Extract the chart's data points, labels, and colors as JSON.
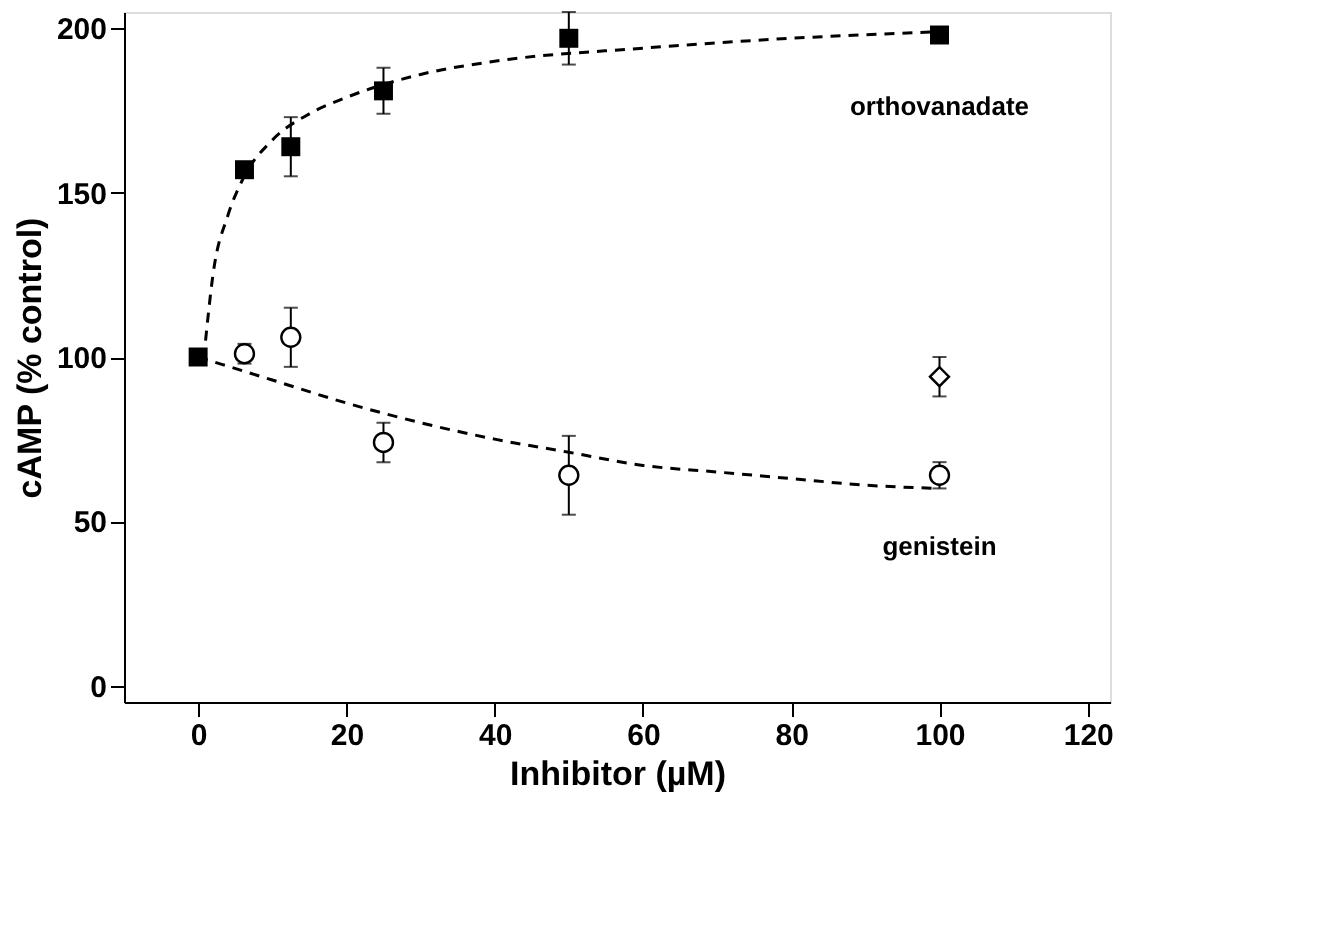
{
  "chart_data": {
    "type": "scatter",
    "xlabel": "Inhibitor  (µM)",
    "ylabel": "cAMP  (% control)",
    "xlim": [
      -10,
      123
    ],
    "ylim": [
      -5,
      205
    ],
    "xticks": [
      0,
      20,
      40,
      60,
      80,
      100,
      120
    ],
    "yticks": [
      0,
      50,
      100,
      150,
      200
    ],
    "grid": false,
    "series": [
      {
        "name": "orthovanadate",
        "color": "#000000",
        "marker": "square",
        "x": [
          0,
          6.25,
          12.5,
          25,
          50,
          100
        ],
        "values": [
          100,
          157,
          164,
          181,
          197,
          198
        ],
        "errors": [
          null,
          2,
          9,
          7,
          8,
          null
        ]
      },
      {
        "name": "genistein",
        "color": "#000000",
        "marker": "circle",
        "x": [
          6.25,
          12.5,
          25,
          50,
          100
        ],
        "values": [
          101,
          106,
          74,
          64,
          64
        ],
        "errors": [
          3,
          9,
          6,
          12,
          4
        ]
      },
      {
        "color": "#000000",
        "marker": "diamond",
        "x": [
          100
        ],
        "values": [
          94
        ],
        "errors": [
          6
        ]
      },
      {
        "type": "line",
        "color": "#000000",
        "line_style": "dashed",
        "x": [
          1,
          2,
          4,
          6,
          10,
          15,
          20,
          30,
          40,
          60,
          80,
          100
        ],
        "values": [
          105,
          125,
          143,
          154,
          166,
          174,
          179,
          186,
          190,
          194,
          197,
          199
        ]
      },
      {
        "type": "line",
        "color": "#000000",
        "line_style": "dashed",
        "x": [
          0,
          10,
          20,
          30,
          40,
          50,
          60,
          70,
          80,
          90,
          100
        ],
        "values": [
          100,
          93,
          86,
          80,
          75,
          71,
          67,
          65,
          63,
          61,
          60
        ]
      }
    ]
  }
}
